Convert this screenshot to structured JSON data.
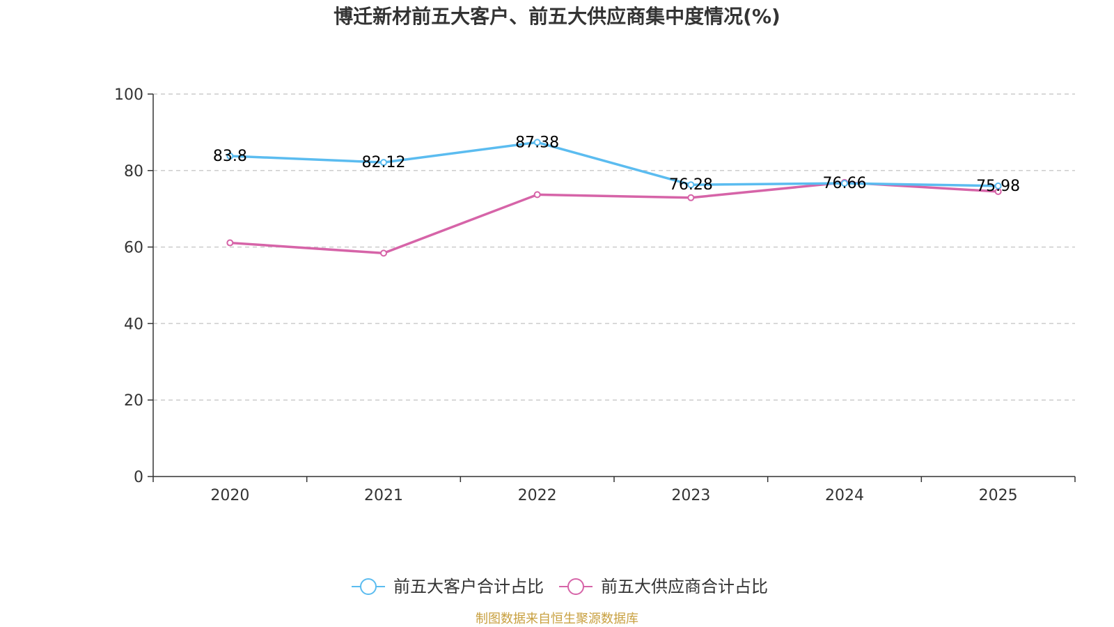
{
  "chart_data": {
    "type": "line",
    "title": "博迁新材前五大客户、前五大供应商集中度情况(%)",
    "categories": [
      "2020",
      "2021",
      "2022",
      "2023",
      "2024",
      "2025"
    ],
    "ylim": [
      0,
      100
    ],
    "yticks": [
      0,
      20,
      40,
      60,
      80,
      100
    ],
    "grid": true,
    "legend_position": "bottom-center",
    "series": [
      {
        "name": "前五大客户合计占比",
        "color": "#5bbcf0",
        "values": [
          83.8,
          82.12,
          87.38,
          76.28,
          76.66,
          75.98
        ],
        "labels": [
          "83.8",
          "82.12",
          "87.38",
          "76.28",
          "76.66",
          "75.98"
        ]
      },
      {
        "name": "前五大供应商合计占比",
        "color": "#d664a8",
        "values": [
          61.1,
          58.4,
          73.7,
          72.9,
          76.9,
          74.5
        ]
      }
    ]
  },
  "source": "制图数据来自恒生聚源数据库"
}
